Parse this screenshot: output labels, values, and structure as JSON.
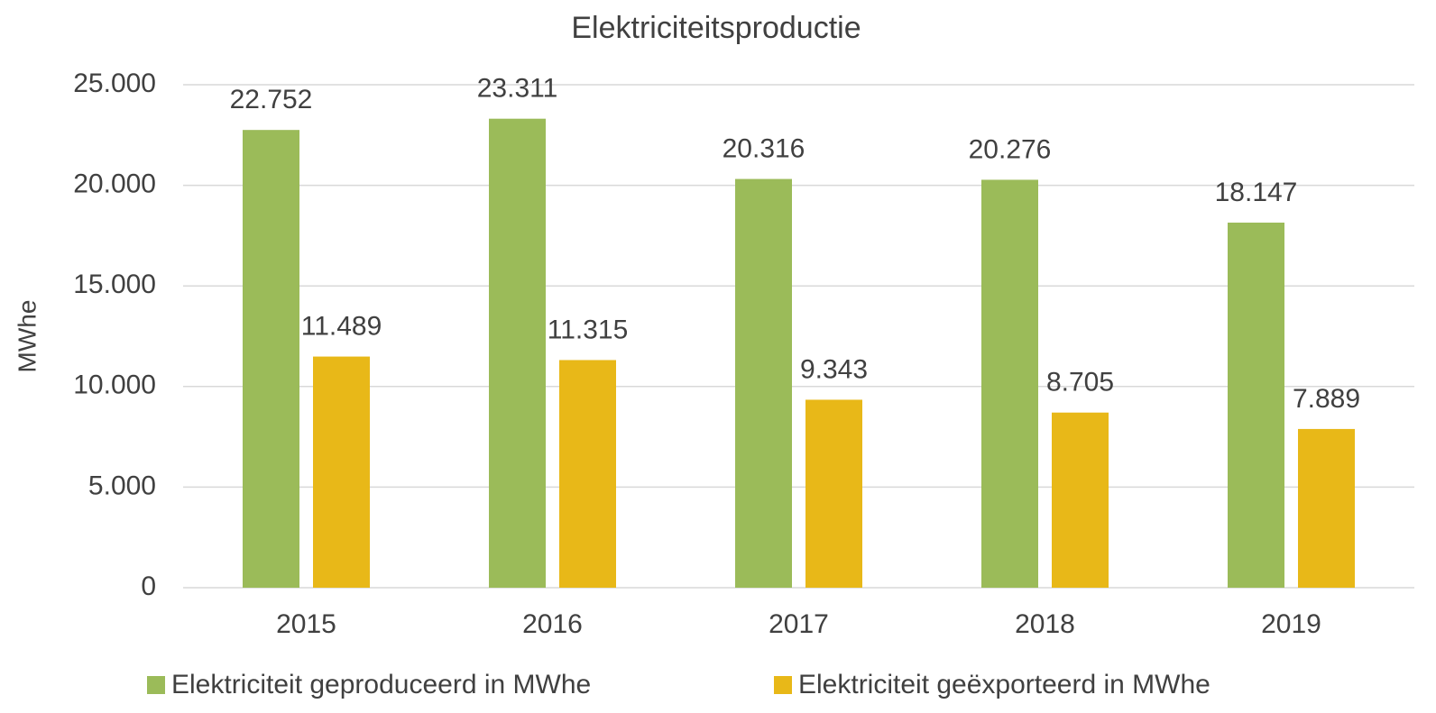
{
  "chart_data": {
    "type": "bar",
    "title": "Elektriciteitsproductie",
    "ylabel": "MWhe",
    "categories": [
      "2015",
      "2016",
      "2017",
      "2018",
      "2019"
    ],
    "series": [
      {
        "name": "Elektriciteit geproduceerd in MWhe",
        "color": "#9bbb59",
        "values": [
          22752,
          23311,
          20316,
          20276,
          18147
        ],
        "value_labels": [
          "22.752",
          "23.311",
          "20.316",
          "20.276",
          "18.147"
        ]
      },
      {
        "name": "Elektriciteit geëxporteerd in MWhe",
        "color": "#e8b818",
        "values": [
          11489,
          11315,
          9343,
          8705,
          7889
        ],
        "value_labels": [
          "11.489",
          "11.315",
          "9.343",
          "8.705",
          "7.889"
        ]
      }
    ],
    "ylim": [
      0,
      25000
    ],
    "yticks": [
      0,
      {
        "value": 5000,
        "label": "5.000"
      },
      {
        "value": 10000,
        "label": "10.000"
      },
      {
        "value": 15000,
        "label": "15.000"
      },
      {
        "value": 20000,
        "label": "20.000"
      },
      {
        "value": 25000,
        "label": "25.000"
      }
    ],
    "grid": true,
    "legend": "bottom"
  }
}
